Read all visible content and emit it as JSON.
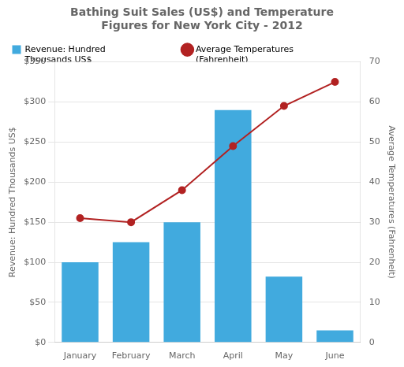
{
  "chart_data": {
    "type": "bar",
    "title": "Bathing Suit Sales (US$) and Temperature",
    "subtitle": "Figures for New York City - 2012",
    "categories": [
      "January",
      "February",
      "March",
      "April",
      "May",
      "June"
    ],
    "series": [
      {
        "name": "Revenue: Hundred\nThousands US$",
        "type": "bar",
        "color": "#41AADE",
        "values": [
          100,
          125,
          150,
          290,
          82,
          15
        ]
      },
      {
        "name": "Average Temperatures\n(Fahrenheit)",
        "type": "line",
        "color": "#B22222",
        "marker": "circle",
        "axis": "y2",
        "values": [
          31,
          30,
          38,
          49,
          59,
          65
        ]
      }
    ],
    "ylabel": "Revenue: Hundred Thousands US$",
    "y2label": "Average Temperatures (Fahrenheit)",
    "ylim": [
      0,
      350
    ],
    "yticks": [
      {
        "value": 0,
        "label": "$0"
      },
      {
        "value": 50,
        "label": "$50"
      },
      {
        "value": 100,
        "label": "$100"
      },
      {
        "value": 150,
        "label": "$150"
      },
      {
        "value": 200,
        "label": "$200"
      },
      {
        "value": 250,
        "label": "$250"
      },
      {
        "value": 300,
        "label": "$300"
      },
      {
        "value": 350,
        "label": "$350"
      }
    ],
    "y2lim": [
      0,
      70
    ],
    "y2ticks": [
      0,
      10,
      20,
      30,
      40,
      50,
      60,
      70
    ],
    "grid": true,
    "legend": "upper left"
  }
}
